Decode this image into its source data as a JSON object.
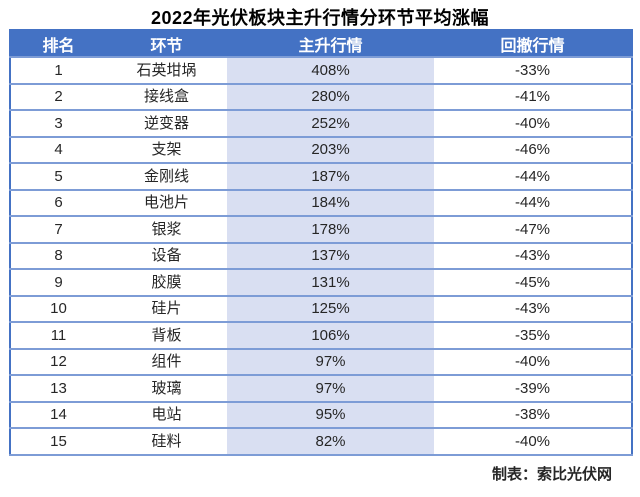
{
  "title": "2022年光伏板块主升行情分环节平均涨幅",
  "footer": "制表：索比光伏网",
  "table": {
    "headers": [
      "排名",
      "环节",
      "主升行情",
      "回撤行情"
    ],
    "rows": [
      {
        "rank": "1",
        "segment": "石英坩埚",
        "rally": "408%",
        "pullback": "-33%"
      },
      {
        "rank": "2",
        "segment": "接线盒",
        "rally": "280%",
        "pullback": "-41%"
      },
      {
        "rank": "3",
        "segment": "逆变器",
        "rally": "252%",
        "pullback": "-40%"
      },
      {
        "rank": "4",
        "segment": "支架",
        "rally": "203%",
        "pullback": "-46%"
      },
      {
        "rank": "5",
        "segment": "金刚线",
        "rally": "187%",
        "pullback": "-44%"
      },
      {
        "rank": "6",
        "segment": "电池片",
        "rally": "184%",
        "pullback": "-44%"
      },
      {
        "rank": "7",
        "segment": "银浆",
        "rally": "178%",
        "pullback": "-47%"
      },
      {
        "rank": "8",
        "segment": "设备",
        "rally": "137%",
        "pullback": "-43%"
      },
      {
        "rank": "9",
        "segment": "胶膜",
        "rally": "131%",
        "pullback": "-45%"
      },
      {
        "rank": "10",
        "segment": "硅片",
        "rally": "125%",
        "pullback": "-43%"
      },
      {
        "rank": "11",
        "segment": "背板",
        "rally": "106%",
        "pullback": "-35%"
      },
      {
        "rank": "12",
        "segment": "组件",
        "rally": "97%",
        "pullback": "-40%"
      },
      {
        "rank": "13",
        "segment": "玻璃",
        "rally": "97%",
        "pullback": "-39%"
      },
      {
        "rank": "14",
        "segment": "电站",
        "rally": "95%",
        "pullback": "-38%"
      },
      {
        "rank": "15",
        "segment": "硅料",
        "rally": "82%",
        "pullback": "-40%"
      }
    ]
  },
  "colors": {
    "header_bg": "#4472C4",
    "header_text": "#FFFFFF",
    "rally_column_bg": "#D9DFF2",
    "grid_line": "#7D9CD6",
    "outer_border": "#4472C4",
    "body_text": "#262626"
  },
  "chart_data": {
    "type": "table",
    "title": "2022年光伏板块主升行情分环节平均涨幅",
    "columns": [
      "排名",
      "环节",
      "主升行情",
      "回撤行情"
    ],
    "categories": [
      "石英坩埚",
      "接线盒",
      "逆变器",
      "支架",
      "金刚线",
      "电池片",
      "银浆",
      "设备",
      "胶膜",
      "硅片",
      "背板",
      "组件",
      "玻璃",
      "电站",
      "硅料"
    ],
    "series": [
      {
        "name": "主升行情(%)",
        "values": [
          408,
          280,
          252,
          203,
          187,
          184,
          178,
          137,
          131,
          125,
          106,
          97,
          97,
          95,
          82
        ]
      },
      {
        "name": "回撤行情(%)",
        "values": [
          -33,
          -41,
          -40,
          -46,
          -44,
          -44,
          -47,
          -43,
          -45,
          -43,
          -35,
          -40,
          -39,
          -38,
          -40
        ]
      }
    ],
    "source": "制表：索比光伏网",
    "layout": "ranked table, rally column highlighted"
  }
}
